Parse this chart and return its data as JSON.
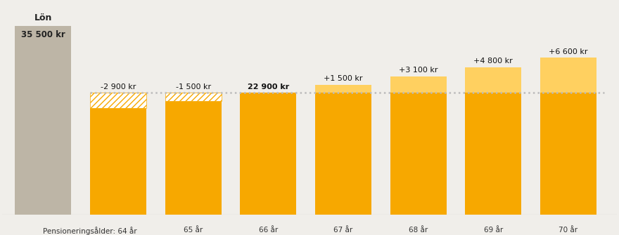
{
  "salary_value": 35500,
  "salary_label": "Lön",
  "salary_amount_label": "35 500 kr",
  "salary_bar_color": "#bdb5a6",
  "reference_value": 22900,
  "pension_x_labels": [
    "Pensioneringsålder: 64 år",
    "65 år",
    "66 år",
    "67 år",
    "68 år",
    "69 år",
    "70 år"
  ],
  "pension_values": [
    20000,
    21400,
    22900,
    24400,
    26000,
    27700,
    29500
  ],
  "pension_diffs": [
    "-2 900 kr",
    "-1 500 kr",
    "22 900 kr",
    "+1 500 kr",
    "+3 100 kr",
    "+4 800 kr",
    "+6 600 kr"
  ],
  "bar_color_main": "#F7A800",
  "bar_color_light": "#FFD060",
  "background_color": "#f0eeea",
  "dotted_line_color": "#bbbbbb",
  "ylim_max": 40000,
  "ylim_min": 0,
  "fig_width": 8.8,
  "fig_height": 3.35,
  "dpi": 100
}
